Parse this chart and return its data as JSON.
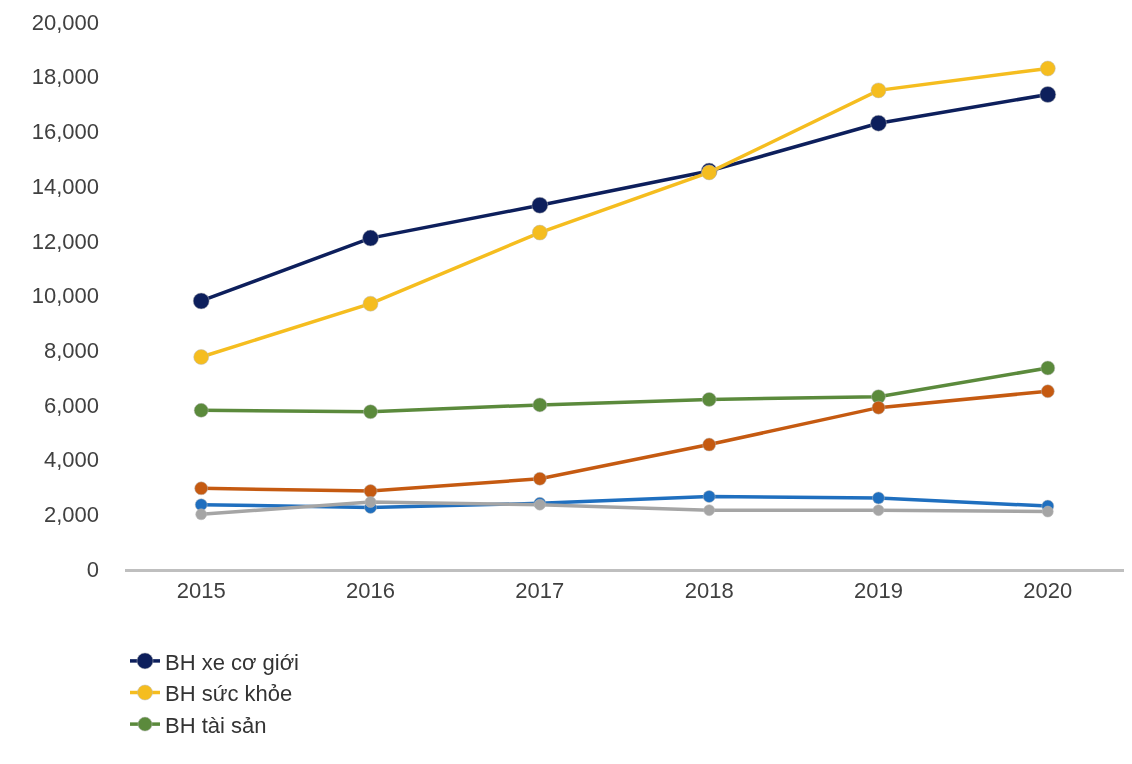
{
  "chart_data": {
    "type": "line",
    "categories": [
      "2015",
      "2016",
      "2017",
      "2018",
      "2019",
      "2020"
    ],
    "series": [
      {
        "name": "BH xe cơ giới",
        "color": "#0d1f5c",
        "values": [
          9800,
          12100,
          13300,
          14550,
          16300,
          17350
        ]
      },
      {
        "name": "BH sức khỏe",
        "color": "#f5bd1f",
        "values": [
          7750,
          9700,
          12300,
          14500,
          17500,
          18300
        ]
      },
      {
        "name": "BH tài sản",
        "color": "#5b8a3c",
        "values": [
          5800,
          5750,
          6000,
          6200,
          6300,
          7350
        ]
      },
      {
        "color": "#c55a11",
        "values": [
          2950,
          2850,
          3300,
          4550,
          5900,
          6500
        ]
      },
      {
        "color": "#1f6fbf",
        "values": [
          2350,
          2250,
          2400,
          2650,
          2600,
          2300
        ]
      },
      {
        "color": "#a5a5a5",
        "values": [
          2000,
          2450,
          2350,
          2150,
          2150,
          2100
        ]
      }
    ],
    "ylim": [
      0,
      20000
    ],
    "yticks": [
      {
        "value": 0,
        "label": "0"
      },
      {
        "value": 2000,
        "label": "2,000"
      },
      {
        "value": 4000,
        "label": "4,000"
      },
      {
        "value": 6000,
        "label": "6,000"
      },
      {
        "value": 8000,
        "label": "8,000"
      },
      {
        "value": 10000,
        "label": "10,000"
      },
      {
        "value": 12000,
        "label": "12,000"
      },
      {
        "value": 14000,
        "label": "14,000"
      },
      {
        "value": 16000,
        "label": "16,000"
      },
      {
        "value": 18000,
        "label": "18,000"
      },
      {
        "value": 20000,
        "label": "20,000"
      }
    ],
    "grid": false,
    "legend": "bottom left",
    "marker": "circle",
    "line_style": "solid"
  }
}
